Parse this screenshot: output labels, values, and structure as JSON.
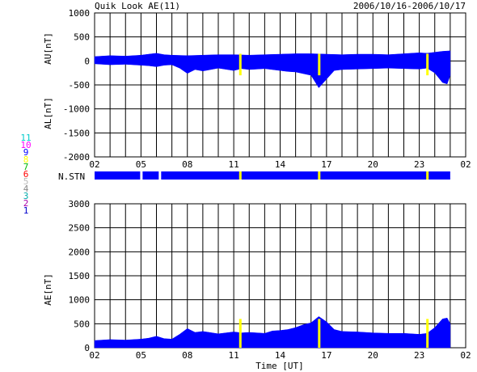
{
  "header": {
    "title": "Quik Look AE(11)",
    "date_range": "2006/10/16-2006/10/17"
  },
  "colors": {
    "data_fill": "#0000ff",
    "highlight": "#ffff00",
    "grid": "#000000",
    "background": "#ffffff"
  },
  "station_legend": [
    {
      "label": "11",
      "color": "#00cccc"
    },
    {
      "label": "10",
      "color": "#ff00ff"
    },
    {
      "label": "9",
      "color": "#0000ff"
    },
    {
      "label": "8",
      "color": "#ffff00"
    },
    {
      "label": "7",
      "color": "#00bb00"
    },
    {
      "label": "6",
      "color": "#ff0000"
    },
    {
      "label": "5",
      "color": "#bbbbbb"
    },
    {
      "label": "4",
      "color": "#888888"
    },
    {
      "label": "3",
      "color": "#00aaaa"
    },
    {
      "label": "2",
      "color": "#aa00aa"
    },
    {
      "label": "1",
      "color": "#0000cc"
    }
  ],
  "chart_data": [
    {
      "type": "area",
      "panel": "AU/AL",
      "ylabel_top": "AU[nT]",
      "ylabel_bottom": "AL[nT]",
      "ylim": [
        -2000,
        1000
      ],
      "yticks": [
        1000,
        500,
        0,
        -500,
        -1000,
        -1500,
        -2000
      ],
      "xlim": [
        0,
        24
      ],
      "xtick_labels": [
        "02",
        "05",
        "08",
        "11",
        "14",
        "17",
        "20",
        "23",
        "02"
      ],
      "grid": true,
      "series": [
        {
          "name": "AU",
          "x": [
            0,
            1,
            2,
            3,
            3.5,
            4,
            4.5,
            5,
            6,
            7,
            8,
            9,
            10,
            11,
            12,
            13,
            14,
            15,
            16,
            17,
            18,
            19,
            20,
            21,
            21.5,
            22,
            22.5,
            23.0
          ],
          "y": [
            90,
            110,
            100,
            120,
            140,
            160,
            130,
            120,
            110,
            120,
            130,
            130,
            120,
            130,
            140,
            150,
            150,
            140,
            130,
            140,
            140,
            130,
            150,
            170,
            160,
            180,
            200,
            210
          ]
        },
        {
          "name": "AL",
          "x": [
            0,
            1,
            2,
            3,
            3.5,
            4,
            4.5,
            5,
            5.5,
            6,
            6.5,
            7,
            8,
            9,
            9.5,
            10,
            11,
            12,
            12.5,
            13,
            14,
            14.5,
            15,
            15.5,
            16,
            17,
            18,
            19,
            20,
            21,
            21.5,
            22,
            22.5,
            22.8,
            23.0
          ],
          "y": [
            -60,
            -80,
            -70,
            -90,
            -100,
            -120,
            -90,
            -80,
            -150,
            -260,
            -180,
            -210,
            -150,
            -200,
            -160,
            -180,
            -160,
            -200,
            -220,
            -230,
            -300,
            -560,
            -380,
            -200,
            -180,
            -170,
            -160,
            -150,
            -160,
            -170,
            -150,
            -250,
            -450,
            -480,
            -300
          ]
        }
      ]
    },
    {
      "type": "bar",
      "panel": "N.STN",
      "label": "N.STN",
      "xlim": [
        0,
        24
      ],
      "segments_stations": 11,
      "gaps": [
        3.0,
        4.2,
        9.4,
        14.5,
        21.5
      ]
    },
    {
      "type": "area",
      "panel": "AE",
      "ylabel": "AE[nT]",
      "xlabel": "Time [UT]",
      "ylim": [
        0,
        3000
      ],
      "yticks": [
        3000,
        2500,
        2000,
        1500,
        1000,
        500,
        0
      ],
      "xlim": [
        0,
        24
      ],
      "xtick_labels": [
        "02",
        "05",
        "08",
        "11",
        "14",
        "17",
        "20",
        "23",
        "02"
      ],
      "grid": true,
      "series": [
        {
          "name": "AE",
          "x": [
            0,
            1,
            2,
            3,
            3.5,
            4,
            4.5,
            5,
            5.5,
            6,
            6.5,
            7,
            8,
            9,
            9.5,
            10,
            11,
            11.5,
            12,
            12.5,
            13,
            13.5,
            14,
            14.5,
            15,
            15.5,
            16,
            17,
            18,
            19,
            20,
            21,
            21.5,
            22,
            22.5,
            22.8,
            23.0
          ],
          "y": [
            150,
            170,
            160,
            180,
            200,
            240,
            190,
            180,
            280,
            400,
            320,
            340,
            290,
            330,
            310,
            320,
            300,
            350,
            360,
            380,
            420,
            480,
            520,
            650,
            540,
            380,
            340,
            330,
            310,
            300,
            300,
            280,
            300,
            420,
            600,
            620,
            500
          ]
        }
      ]
    }
  ]
}
